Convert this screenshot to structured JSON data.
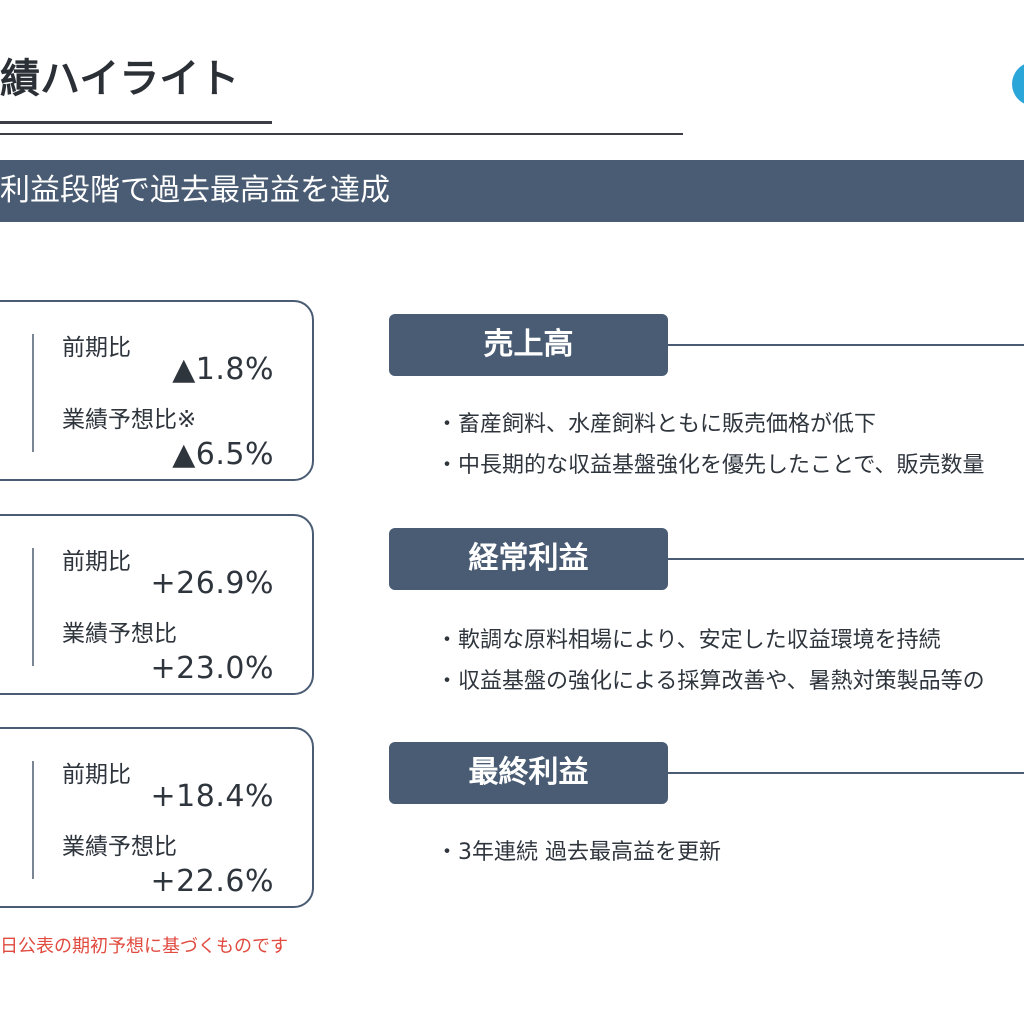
{
  "header": {
    "title": "績ハイライト"
  },
  "banner": {
    "text": "利益段階で過去最高益を達成"
  },
  "cards": [
    {
      "label1": "前期比",
      "value1": "▲1.8%",
      "label2": "業績予想比※",
      "value2": "▲6.5%"
    },
    {
      "label1": "前期比",
      "value1": "+26.9%",
      "label2": "業績予想比",
      "value2": "+23.0%"
    },
    {
      "label1": "前期比",
      "value1": "+18.4%",
      "label2": "業績予想比",
      "value2": "+22.6%"
    }
  ],
  "note": "日公表の期初予想に基づくものです",
  "sections": [
    {
      "title": "売上高",
      "bullets": [
        "・畜産飼料、水産飼料ともに販売価格が低下",
        "・中長期的な収益基盤強化を優先したことで、販売数量"
      ]
    },
    {
      "title": "経常利益",
      "bullets": [
        "・軟調な原料相場により、安定した収益環境を持続",
        "・収益基盤の強化による採算改善や、暑熱対策製品等の"
      ]
    },
    {
      "title": "最終利益",
      "bullets": [
        "・3年連続 過去最高益を更新"
      ]
    }
  ],
  "colors": {
    "accent": "#4a5c73",
    "note": "#e04a3f",
    "logo": "#2aa6d9"
  }
}
